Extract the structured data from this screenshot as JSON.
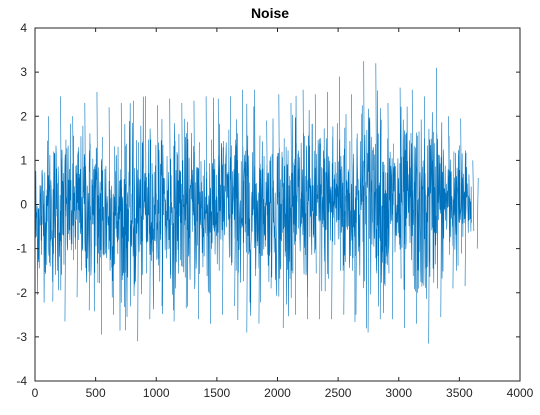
{
  "chart_data": {
    "type": "line",
    "title": "Noise",
    "xlabel": "",
    "ylabel": "",
    "xlim": [
      0,
      4000
    ],
    "ylim": [
      -4,
      4
    ],
    "x_ticks": [
      0,
      500,
      1000,
      1500,
      2000,
      2500,
      3000,
      3500,
      4000
    ],
    "y_ticks": [
      -4,
      -3,
      -2,
      -1,
      0,
      1,
      2,
      3,
      4
    ],
    "x_tick_labels": [
      "0",
      "500",
      "1000",
      "1500",
      "2000",
      "2500",
      "3000",
      "3500",
      "4000"
    ],
    "y_tick_labels": [
      "-4",
      "-3",
      "-2",
      "-1",
      "0",
      "1",
      "2",
      "3",
      "4"
    ],
    "grid": false,
    "legend": "none",
    "series": [
      {
        "color": "#0072BD",
        "x_start": 1,
        "x_end": 3600,
        "description_values": "Gaussian-like noise centered at 0, mostly within about -1.5 to 1.5, occasional spikes to about -3.1 and 3.3",
        "envelope": {
          "x": [
            0,
            100,
            200,
            300,
            400,
            500,
            600,
            700,
            800,
            900,
            1000,
            1100,
            1200,
            1300,
            1400,
            1500,
            1600,
            1700,
            1800,
            1900,
            2000,
            2100,
            2200,
            2300,
            2400,
            2500,
            2600,
            2700,
            2800,
            2900,
            3000,
            3100,
            3200,
            3300,
            3400,
            3500,
            3600
          ],
          "upper": [
            1.9,
            2.0,
            2.45,
            2.0,
            2.3,
            2.55,
            2.2,
            2.3,
            2.35,
            2.45,
            2.25,
            2.4,
            2.3,
            2.35,
            2.45,
            2.4,
            2.45,
            2.6,
            2.6,
            1.9,
            2.5,
            2.3,
            2.6,
            2.5,
            2.55,
            2.9,
            2.5,
            3.25,
            3.2,
            2.3,
            2.65,
            2.6,
            2.45,
            3.1,
            2.0,
            1.95,
            1.0
          ],
          "lower": [
            -2.75,
            -2.2,
            -2.65,
            -2.1,
            -2.4,
            -2.95,
            -2.5,
            -2.85,
            -3.1,
            -2.6,
            -2.3,
            -2.65,
            -2.35,
            -2.6,
            -2.7,
            -2.5,
            -2.3,
            -2.9,
            -2.7,
            -1.9,
            -2.8,
            -2.5,
            -2.6,
            -2.6,
            -2.6,
            -2.5,
            -2.5,
            -2.9,
            -2.6,
            -2.6,
            -2.8,
            -2.7,
            -3.15,
            -2.55,
            -1.9,
            -1.85,
            -1.0
          ]
        }
      }
    ]
  }
}
